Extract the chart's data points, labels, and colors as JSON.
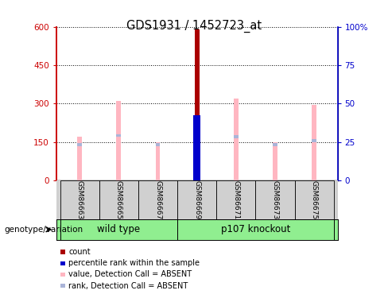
{
  "title": "GDS1931 / 1452723_at",
  "samples": [
    "GSM86663",
    "GSM86665",
    "GSM86667",
    "GSM86669",
    "GSM86671",
    "GSM86673",
    "GSM86675"
  ],
  "value_bars": [
    170,
    310,
    150,
    590,
    320,
    150,
    295
  ],
  "rank_bars": [
    140,
    175,
    140,
    255,
    170,
    140,
    155
  ],
  "count_bar_idx": 3,
  "count_value": 590,
  "percentile_rank_val": 255,
  "ylim_left": [
    0,
    600
  ],
  "ylim_right": [
    0,
    100
  ],
  "yticks_left": [
    0,
    150,
    300,
    450,
    600
  ],
  "ytick_labels_left": [
    "0",
    "150",
    "300",
    "450",
    "600"
  ],
  "yticks_right": [
    0,
    25,
    50,
    75,
    100
  ],
  "ytick_labels_right": [
    "0",
    "25",
    "50",
    "75",
    "100%"
  ],
  "left_axis_color": "#cc0000",
  "right_axis_color": "#0000cc",
  "bar_color_value": "#FFB6C1",
  "bar_color_rank": "#aab4d8",
  "bar_color_count": "#aa0000",
  "bar_color_percentile": "#0000cc",
  "bar_width": 0.12,
  "grid_color": "black",
  "bg_color": "#ffffff",
  "legend_items": [
    {
      "color": "#aa0000",
      "label": "count"
    },
    {
      "color": "#0000cc",
      "label": "percentile rank within the sample"
    },
    {
      "color": "#FFB6C1",
      "label": "value, Detection Call = ABSENT"
    },
    {
      "color": "#aab4d8",
      "label": "rank, Detection Call = ABSENT"
    }
  ],
  "genotype_label": "genotype/variation",
  "group_labels": [
    "wild type",
    "p107 knockout"
  ],
  "group_colors": [
    "#90EE90",
    "#90EE90"
  ],
  "wt_range": [
    0,
    3
  ],
  "ko_range": [
    3,
    7
  ]
}
